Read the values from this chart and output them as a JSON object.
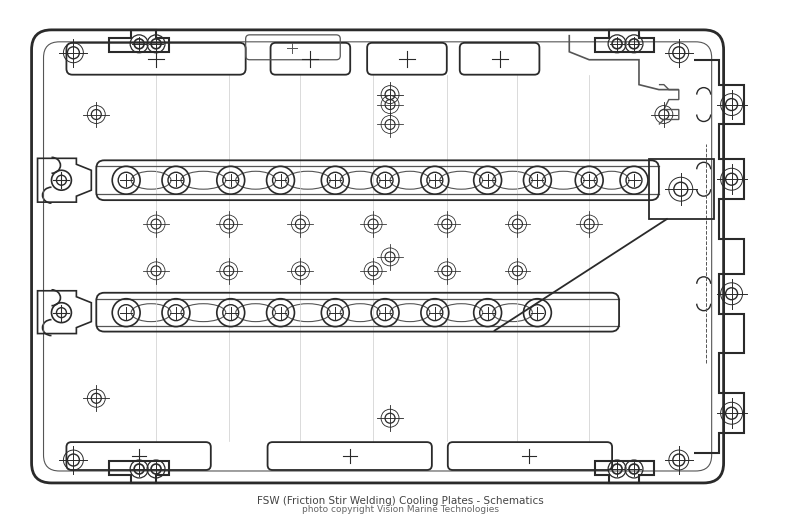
{
  "bg_color": "#ffffff",
  "lc": "#2a2a2a",
  "lc_mid": "#555555",
  "lc_light": "#999999",
  "lc_lighter": "#cccccc",
  "figsize": [
    8.0,
    5.15
  ],
  "dpi": 100,
  "title": "FSW (Friction Stir Welding) Cooling Plates - Schematics",
  "subtitle": "photo copyright Vision Marine Technologies"
}
